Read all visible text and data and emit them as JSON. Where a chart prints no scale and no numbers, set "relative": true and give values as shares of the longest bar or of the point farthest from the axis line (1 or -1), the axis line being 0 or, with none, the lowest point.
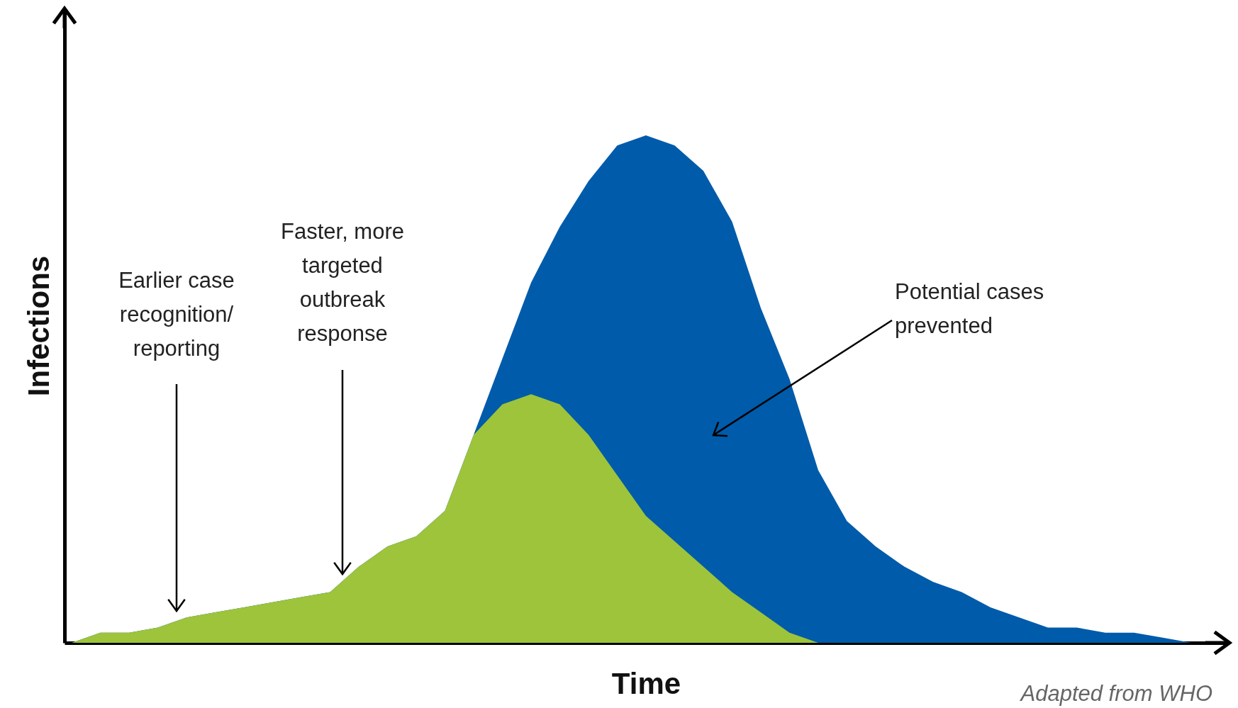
{
  "chart_data": {
    "type": "area",
    "relative": true,
    "xlabel": "Time",
    "ylabel": "Infections",
    "categories": [
      null,
      null,
      null,
      null,
      null,
      null,
      null,
      null,
      null,
      null,
      null,
      null,
      null,
      null,
      null,
      null,
      null,
      null,
      null,
      null,
      null,
      null,
      null,
      null,
      null,
      null,
      null,
      null,
      null,
      null,
      null,
      null,
      null,
      null,
      null,
      null,
      null,
      null,
      null,
      null,
      null
    ],
    "series": [
      {
        "color": "#005baa",
        "values": [
          0,
          0.02,
          0.02,
          0.03,
          0.05,
          0.06,
          0.07,
          0.08,
          0.09,
          0.1,
          0.15,
          0.19,
          0.21,
          0.26,
          0.41,
          0.56,
          0.71,
          0.82,
          0.91,
          0.98,
          1,
          0.98,
          0.93,
          0.83,
          0.66,
          0.52,
          0.34,
          0.24,
          0.19,
          0.15,
          0.12,
          0.1,
          0.07,
          0.05,
          0.03,
          0.03,
          0.02,
          0.02,
          0.01,
          0,
          0
        ]
      },
      {
        "color": "#9dc43b",
        "values": [
          0,
          0.02,
          0.02,
          0.03,
          0.05,
          0.06,
          0.07,
          0.08,
          0.09,
          0.1,
          0.15,
          0.19,
          0.21,
          0.26,
          0.41,
          0.47,
          0.49,
          0.47,
          0.41,
          0.33,
          0.25,
          0.2,
          0.15,
          0.1,
          0.06,
          0.02,
          0,
          0,
          0,
          0,
          0,
          0,
          0,
          0,
          0,
          0,
          0,
          0,
          0,
          0,
          0
        ]
      }
    ],
    "annotations": [
      "Earlier case recognition/ reporting",
      "Faster, more targeted outbreak response",
      "Potential cases prevented",
      "Adapted from WHO"
    ]
  }
}
